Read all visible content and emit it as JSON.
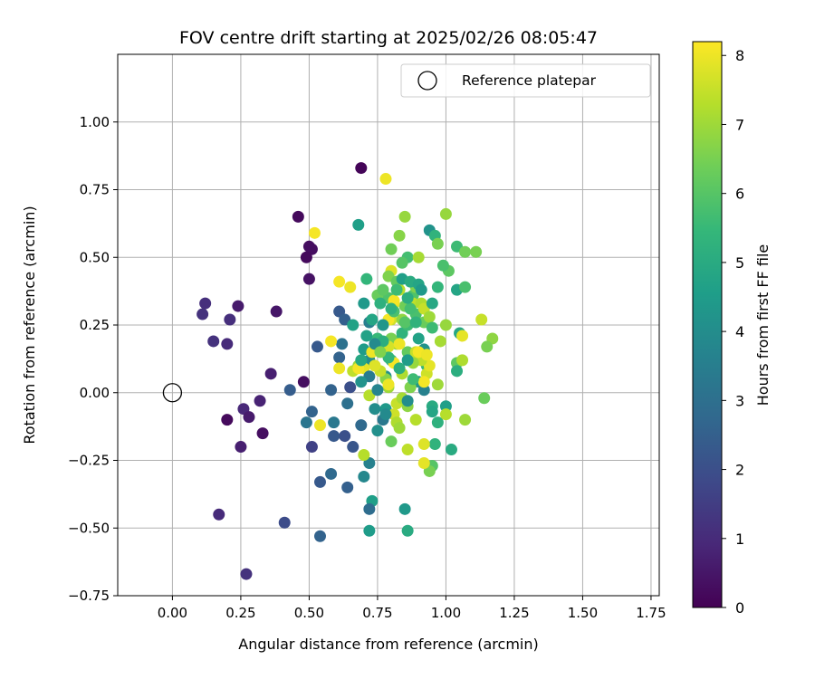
{
  "chart_data": {
    "type": "scatter",
    "title": "FOV centre drift starting at 2025/02/26 08:05:47",
    "xlabel": "Angular distance from reference (arcmin)",
    "ylabel": "Rotation from reference (arcmin)",
    "xlim": [
      -0.2,
      1.78
    ],
    "ylim": [
      -0.75,
      1.25
    ],
    "xticks": [
      "0.00",
      "0.25",
      "0.50",
      "0.75",
      "1.00",
      "1.25",
      "1.50",
      "1.75"
    ],
    "yticks": [
      "−0.75",
      "−0.50",
      "−0.25",
      "0.00",
      "0.25",
      "0.50",
      "0.75",
      "1.00"
    ],
    "grid": true,
    "legend": {
      "placement": "top-right",
      "label": "Reference platepar"
    },
    "reference_point": {
      "x": 0.0,
      "y": 0.0
    },
    "colorbar": {
      "label": "Hours from first FF file",
      "min": 0,
      "max": 8.2,
      "ticks": [
        "0",
        "1",
        "2",
        "3",
        "4",
        "5",
        "6",
        "7",
        "8"
      ],
      "colormap": "viridis",
      "colors": [
        "#440154",
        "#482878",
        "#3e4989",
        "#31688e",
        "#26828e",
        "#1f9e89",
        "#35b779",
        "#6ece58",
        "#b5de2b",
        "#fde725"
      ]
    },
    "points": [
      {
        "x": 0.69,
        "y": 0.83,
        "h": 0.1
      },
      {
        "x": 0.46,
        "y": 0.65,
        "h": 0.2
      },
      {
        "x": 0.5,
        "y": 0.54,
        "h": 0.3
      },
      {
        "x": 0.51,
        "y": 0.53,
        "h": 0.3
      },
      {
        "x": 0.49,
        "y": 0.5,
        "h": 0.2
      },
      {
        "x": 0.5,
        "y": 0.42,
        "h": 0.4
      },
      {
        "x": 0.38,
        "y": 0.3,
        "h": 0.5
      },
      {
        "x": 0.24,
        "y": 0.32,
        "h": 0.6
      },
      {
        "x": 0.12,
        "y": 0.33,
        "h": 1.1
      },
      {
        "x": 0.11,
        "y": 0.29,
        "h": 1.2
      },
      {
        "x": 0.21,
        "y": 0.27,
        "h": 1.1
      },
      {
        "x": 0.15,
        "y": 0.19,
        "h": 1.2
      },
      {
        "x": 0.2,
        "y": 0.18,
        "h": 1.0
      },
      {
        "x": 0.36,
        "y": 0.07,
        "h": 0.7
      },
      {
        "x": 0.48,
        "y": 0.04,
        "h": 0.3
      },
      {
        "x": 0.32,
        "y": -0.03,
        "h": 0.8
      },
      {
        "x": 0.26,
        "y": -0.06,
        "h": 0.9
      },
      {
        "x": 0.28,
        "y": -0.09,
        "h": 0.6
      },
      {
        "x": 0.2,
        "y": -0.1,
        "h": 0.2
      },
      {
        "x": 0.33,
        "y": -0.15,
        "h": 0.3
      },
      {
        "x": 0.25,
        "y": -0.2,
        "h": 0.7
      },
      {
        "x": 0.17,
        "y": -0.45,
        "h": 1.0
      },
      {
        "x": 0.27,
        "y": -0.67,
        "h": 1.2
      },
      {
        "x": 0.41,
        "y": -0.48,
        "h": 1.9
      },
      {
        "x": 0.51,
        "y": -0.2,
        "h": 1.6
      },
      {
        "x": 0.54,
        "y": -0.33,
        "h": 2.3
      },
      {
        "x": 0.54,
        "y": -0.53,
        "h": 2.6
      },
      {
        "x": 0.43,
        "y": 0.01,
        "h": 2.4
      },
      {
        "x": 0.51,
        "y": -0.07,
        "h": 2.6
      },
      {
        "x": 0.53,
        "y": 0.17,
        "h": 2.3
      },
      {
        "x": 0.58,
        "y": -0.3,
        "h": 2.8
      },
      {
        "x": 0.64,
        "y": -0.35,
        "h": 2.5
      },
      {
        "x": 0.66,
        "y": -0.2,
        "h": 2.2
      },
      {
        "x": 0.63,
        "y": -0.16,
        "h": 2.0
      },
      {
        "x": 0.59,
        "y": -0.16,
        "h": 2.3
      },
      {
        "x": 0.49,
        "y": -0.11,
        "h": 3.2
      },
      {
        "x": 0.59,
        "y": -0.11,
        "h": 3.3
      },
      {
        "x": 0.64,
        "y": -0.04,
        "h": 3.0
      },
      {
        "x": 0.65,
        "y": 0.02,
        "h": 2.0
      },
      {
        "x": 0.58,
        "y": 0.01,
        "h": 2.6
      },
      {
        "x": 0.61,
        "y": 0.13,
        "h": 2.6
      },
      {
        "x": 0.62,
        "y": 0.18,
        "h": 3.1
      },
      {
        "x": 0.61,
        "y": 0.3,
        "h": 2.3
      },
      {
        "x": 0.63,
        "y": 0.27,
        "h": 2.5
      },
      {
        "x": 0.66,
        "y": 0.25,
        "h": 4.7
      },
      {
        "x": 0.7,
        "y": 0.33,
        "h": 4.4
      },
      {
        "x": 0.68,
        "y": 0.62,
        "h": 4.6
      },
      {
        "x": 0.71,
        "y": 0.42,
        "h": 5.4
      },
      {
        "x": 0.72,
        "y": 0.26,
        "h": 3.5
      },
      {
        "x": 0.73,
        "y": 0.27,
        "h": 4.8
      },
      {
        "x": 0.7,
        "y": 0.16,
        "h": 4.5
      },
      {
        "x": 0.72,
        "y": 0.12,
        "h": 4.0
      },
      {
        "x": 0.69,
        "y": -0.12,
        "h": 2.8
      },
      {
        "x": 0.72,
        "y": -0.26,
        "h": 3.6
      },
      {
        "x": 0.7,
        "y": -0.31,
        "h": 3.8
      },
      {
        "x": 0.73,
        "y": -0.4,
        "h": 4.6
      },
      {
        "x": 0.72,
        "y": -0.43,
        "h": 2.9
      },
      {
        "x": 0.72,
        "y": -0.51,
        "h": 4.5
      },
      {
        "x": 0.75,
        "y": -0.14,
        "h": 4.1
      },
      {
        "x": 0.77,
        "y": -0.1,
        "h": 3.3
      },
      {
        "x": 0.78,
        "y": -0.06,
        "h": 4.4
      },
      {
        "x": 0.78,
        "y": 0.06,
        "h": 4.1
      },
      {
        "x": 0.8,
        "y": 0.12,
        "h": 5.2
      },
      {
        "x": 0.82,
        "y": 0.19,
        "h": 5.5
      },
      {
        "x": 0.84,
        "y": 0.22,
        "h": 5.3
      },
      {
        "x": 0.86,
        "y": 0.25,
        "h": 5.6
      },
      {
        "x": 0.85,
        "y": 0.32,
        "h": 6.4
      },
      {
        "x": 0.88,
        "y": 0.36,
        "h": 5.9
      },
      {
        "x": 0.89,
        "y": 0.29,
        "h": 5.8
      },
      {
        "x": 0.92,
        "y": 0.26,
        "h": 6.3
      },
      {
        "x": 0.9,
        "y": 0.2,
        "h": 4.7
      },
      {
        "x": 0.92,
        "y": 0.16,
        "h": 4.2
      },
      {
        "x": 0.93,
        "y": 0.1,
        "h": 5.4
      },
      {
        "x": 0.9,
        "y": 0.04,
        "h": 4.3
      },
      {
        "x": 0.92,
        "y": 0.01,
        "h": 3.6
      },
      {
        "x": 0.95,
        "y": -0.05,
        "h": 5.0
      },
      {
        "x": 0.95,
        "y": -0.07,
        "h": 4.8
      },
      {
        "x": 1.0,
        "y": -0.05,
        "h": 4.6
      },
      {
        "x": 0.97,
        "y": -0.11,
        "h": 5.2
      },
      {
        "x": 0.96,
        "y": -0.19,
        "h": 5.3
      },
      {
        "x": 1.02,
        "y": -0.21,
        "h": 5.0
      },
      {
        "x": 0.95,
        "y": -0.27,
        "h": 6.0
      },
      {
        "x": 0.94,
        "y": -0.29,
        "h": 6.5
      },
      {
        "x": 0.85,
        "y": -0.43,
        "h": 4.4
      },
      {
        "x": 0.86,
        "y": -0.51,
        "h": 5.0
      },
      {
        "x": 0.8,
        "y": -0.18,
        "h": 6.3
      },
      {
        "x": 0.86,
        "y": -0.21,
        "h": 7.4
      },
      {
        "x": 0.92,
        "y": -0.19,
        "h": 7.8
      },
      {
        "x": 0.92,
        "y": -0.26,
        "h": 7.9
      },
      {
        "x": 0.94,
        "y": 0.6,
        "h": 4.2
      },
      {
        "x": 0.96,
        "y": 0.58,
        "h": 5.3
      },
      {
        "x": 1.0,
        "y": 0.66,
        "h": 6.9
      },
      {
        "x": 0.97,
        "y": 0.55,
        "h": 6.5
      },
      {
        "x": 1.04,
        "y": 0.54,
        "h": 5.6
      },
      {
        "x": 1.07,
        "y": 0.52,
        "h": 6.4
      },
      {
        "x": 1.11,
        "y": 0.52,
        "h": 6.5
      },
      {
        "x": 1.01,
        "y": 0.45,
        "h": 6.1
      },
      {
        "x": 0.99,
        "y": 0.47,
        "h": 5.8
      },
      {
        "x": 0.97,
        "y": 0.39,
        "h": 5.4
      },
      {
        "x": 1.04,
        "y": 0.38,
        "h": 4.8
      },
      {
        "x": 1.07,
        "y": 0.39,
        "h": 5.8
      },
      {
        "x": 1.0,
        "y": 0.25,
        "h": 6.9
      },
      {
        "x": 1.05,
        "y": 0.22,
        "h": 4.9
      },
      {
        "x": 1.06,
        "y": 0.21,
        "h": 7.9
      },
      {
        "x": 1.13,
        "y": 0.27,
        "h": 7.5
      },
      {
        "x": 1.17,
        "y": 0.2,
        "h": 6.8
      },
      {
        "x": 1.15,
        "y": 0.17,
        "h": 6.5
      },
      {
        "x": 1.04,
        "y": 0.11,
        "h": 6.1
      },
      {
        "x": 1.06,
        "y": 0.12,
        "h": 7.2
      },
      {
        "x": 1.04,
        "y": 0.08,
        "h": 5.1
      },
      {
        "x": 0.98,
        "y": 0.19,
        "h": 7.1
      },
      {
        "x": 0.97,
        "y": 0.03,
        "h": 7.0
      },
      {
        "x": 1.0,
        "y": -0.08,
        "h": 7.3
      },
      {
        "x": 1.07,
        "y": -0.1,
        "h": 7.0
      },
      {
        "x": 1.14,
        "y": -0.02,
        "h": 6.3
      },
      {
        "x": 0.85,
        "y": 0.65,
        "h": 6.9
      },
      {
        "x": 0.83,
        "y": 0.58,
        "h": 6.7
      },
      {
        "x": 0.78,
        "y": 0.79,
        "h": 8.0
      },
      {
        "x": 0.8,
        "y": 0.53,
        "h": 6.4
      },
      {
        "x": 0.86,
        "y": 0.5,
        "h": 5.7
      },
      {
        "x": 0.9,
        "y": 0.5,
        "h": 7.1
      },
      {
        "x": 0.84,
        "y": 0.48,
        "h": 6.0
      },
      {
        "x": 0.8,
        "y": 0.45,
        "h": 7.8
      },
      {
        "x": 0.79,
        "y": 0.43,
        "h": 6.6
      },
      {
        "x": 0.82,
        "y": 0.41,
        "h": 6.2
      },
      {
        "x": 0.83,
        "y": 0.38,
        "h": 7.3
      },
      {
        "x": 0.79,
        "y": 0.35,
        "h": 5.9
      },
      {
        "x": 0.75,
        "y": 0.36,
        "h": 6.3
      },
      {
        "x": 0.81,
        "y": 0.33,
        "h": 7.9
      },
      {
        "x": 0.88,
        "y": 0.33,
        "h": 7.4
      },
      {
        "x": 0.8,
        "y": 0.27,
        "h": 7.6
      },
      {
        "x": 0.84,
        "y": 0.27,
        "h": 6.8
      },
      {
        "x": 0.91,
        "y": 0.33,
        "h": 7.2
      },
      {
        "x": 0.92,
        "y": 0.31,
        "h": 7.5
      },
      {
        "x": 0.94,
        "y": 0.28,
        "h": 7.0
      },
      {
        "x": 0.89,
        "y": 0.39,
        "h": 6.6
      },
      {
        "x": 0.86,
        "y": 0.15,
        "h": 6.2
      },
      {
        "x": 0.82,
        "y": 0.18,
        "h": 7.0
      },
      {
        "x": 0.8,
        "y": 0.2,
        "h": 6.5
      },
      {
        "x": 0.79,
        "y": 0.17,
        "h": 7.7
      },
      {
        "x": 0.89,
        "y": 0.15,
        "h": 7.5
      },
      {
        "x": 0.84,
        "y": 0.07,
        "h": 7.2
      },
      {
        "x": 0.78,
        "y": 0.05,
        "h": 6.7
      },
      {
        "x": 0.76,
        "y": 0.08,
        "h": 7.5
      },
      {
        "x": 0.74,
        "y": 0.1,
        "h": 7.8
      },
      {
        "x": 0.7,
        "y": 0.09,
        "h": 7.9
      },
      {
        "x": 0.66,
        "y": 0.08,
        "h": 7.4
      },
      {
        "x": 0.68,
        "y": 0.1,
        "h": 6.9
      },
      {
        "x": 0.72,
        "y": -0.01,
        "h": 7.3
      },
      {
        "x": 0.79,
        "y": 0.02,
        "h": 7.0
      },
      {
        "x": 0.82,
        "y": -0.04,
        "h": 7.5
      },
      {
        "x": 0.84,
        "y": -0.02,
        "h": 7.1
      },
      {
        "x": 0.86,
        "y": -0.05,
        "h": 6.8
      },
      {
        "x": 0.81,
        "y": -0.08,
        "h": 7.6
      },
      {
        "x": 0.82,
        "y": -0.11,
        "h": 7.2
      },
      {
        "x": 0.83,
        "y": -0.13,
        "h": 7.0
      },
      {
        "x": 0.89,
        "y": -0.1,
        "h": 7.3
      },
      {
        "x": 0.7,
        "y": -0.23,
        "h": 7.3
      },
      {
        "x": 0.93,
        "y": 0.07,
        "h": 7.6
      },
      {
        "x": 0.94,
        "y": 0.1,
        "h": 7.9
      },
      {
        "x": 0.91,
        "y": 0.12,
        "h": 7.4
      },
      {
        "x": 0.88,
        "y": 0.11,
        "h": 6.9
      },
      {
        "x": 0.87,
        "y": 0.02,
        "h": 6.6
      },
      {
        "x": 0.58,
        "y": 0.19,
        "h": 8.1
      },
      {
        "x": 0.61,
        "y": 0.41,
        "h": 8.1
      },
      {
        "x": 0.65,
        "y": 0.39,
        "h": 8.0
      },
      {
        "x": 0.52,
        "y": 0.59,
        "h": 8.1
      },
      {
        "x": 0.54,
        "y": -0.12,
        "h": 8.0
      },
      {
        "x": 0.61,
        "y": 0.09,
        "h": 8.0
      },
      {
        "x": 0.68,
        "y": 0.09,
        "h": 8.1
      },
      {
        "x": 0.73,
        "y": 0.15,
        "h": 8.0
      },
      {
        "x": 0.81,
        "y": 0.11,
        "h": 8.1
      },
      {
        "x": 0.9,
        "y": 0.15,
        "h": 8.1
      },
      {
        "x": 0.79,
        "y": 0.27,
        "h": 8.1
      },
      {
        "x": 0.81,
        "y": 0.34,
        "h": 8.1
      },
      {
        "x": 0.83,
        "y": 0.18,
        "h": 8.0
      },
      {
        "x": 0.92,
        "y": 0.04,
        "h": 8.1
      },
      {
        "x": 0.79,
        "y": 0.03,
        "h": 8.0
      },
      {
        "x": 0.93,
        "y": 0.14,
        "h": 8.0
      },
      {
        "x": 0.69,
        "y": 0.12,
        "h": 4.9
      },
      {
        "x": 0.75,
        "y": 0.2,
        "h": 5.5
      },
      {
        "x": 0.76,
        "y": 0.33,
        "h": 5.2
      },
      {
        "x": 0.77,
        "y": 0.25,
        "h": 4.3
      },
      {
        "x": 0.84,
        "y": 0.42,
        "h": 4.6
      },
      {
        "x": 0.87,
        "y": 0.41,
        "h": 5.0
      },
      {
        "x": 0.9,
        "y": 0.4,
        "h": 4.8
      },
      {
        "x": 0.91,
        "y": 0.38,
        "h": 4.4
      },
      {
        "x": 0.95,
        "y": 0.33,
        "h": 4.9
      },
      {
        "x": 0.95,
        "y": 0.24,
        "h": 5.6
      },
      {
        "x": 0.87,
        "y": 0.31,
        "h": 5.7
      },
      {
        "x": 0.85,
        "y": 0.26,
        "h": 6.0
      },
      {
        "x": 0.81,
        "y": 0.3,
        "h": 5.8
      },
      {
        "x": 0.77,
        "y": 0.19,
        "h": 5.1
      },
      {
        "x": 0.74,
        "y": 0.18,
        "h": 3.9
      },
      {
        "x": 0.72,
        "y": 0.06,
        "h": 3.4
      },
      {
        "x": 0.75,
        "y": 0.01,
        "h": 3.7
      },
      {
        "x": 0.78,
        "y": -0.08,
        "h": 3.9
      },
      {
        "x": 0.86,
        "y": -0.03,
        "h": 4.0
      },
      {
        "x": 0.83,
        "y": 0.09,
        "h": 5.1
      },
      {
        "x": 0.88,
        "y": 0.05,
        "h": 5.6
      },
      {
        "x": 0.86,
        "y": 0.12,
        "h": 4.5
      },
      {
        "x": 0.79,
        "y": 0.13,
        "h": 5.4
      },
      {
        "x": 0.71,
        "y": 0.21,
        "h": 4.7
      },
      {
        "x": 0.69,
        "y": 0.04,
        "h": 4.2
      },
      {
        "x": 0.74,
        "y": -0.06,
        "h": 4.0
      },
      {
        "x": 0.89,
        "y": 0.26,
        "h": 5.3
      },
      {
        "x": 0.82,
        "y": 0.38,
        "h": 5.6
      },
      {
        "x": 0.8,
        "y": 0.31,
        "h": 5.2
      },
      {
        "x": 0.86,
        "y": 0.35,
        "h": 5.1
      },
      {
        "x": 0.77,
        "y": 0.38,
        "h": 6.1
      },
      {
        "x": 0.76,
        "y": 0.15,
        "h": 6.6
      }
    ]
  }
}
